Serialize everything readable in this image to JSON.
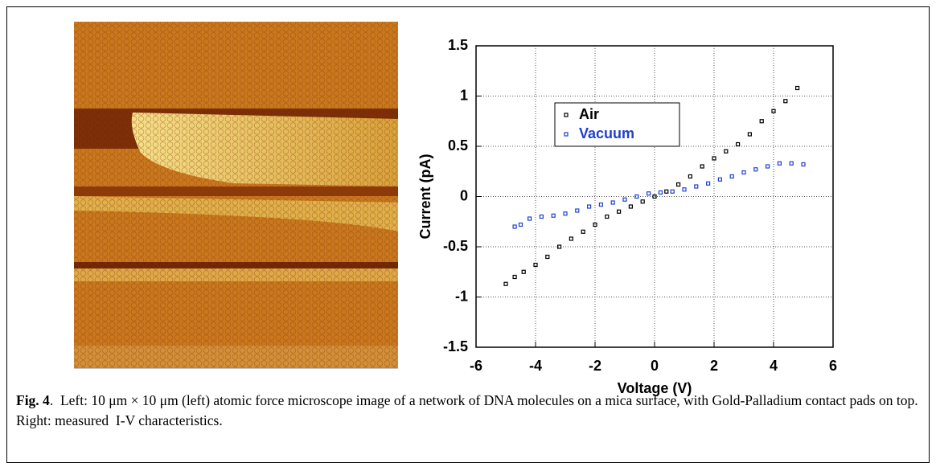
{
  "chart_data": {
    "type": "scatter",
    "x_label": "Voltage (V)",
    "y_label": "Current (pA)",
    "xlim": [
      -6,
      6
    ],
    "xticks": [
      -6,
      -4,
      -2,
      0,
      2,
      4,
      6
    ],
    "ylim": [
      -1.5,
      1.5
    ],
    "yticks": [
      -1.5,
      -1,
      -0.5,
      0,
      0.5,
      1,
      1.5
    ],
    "grid": true,
    "legend": "upper-left",
    "series": [
      {
        "name": "Air",
        "color": "#000000",
        "x": [
          -5,
          -4.7,
          -4.4,
          -4,
          -3.6,
          -3.2,
          -2.8,
          -2.4,
          -2,
          -1.6,
          -1.2,
          -0.8,
          -0.4,
          0,
          0.4,
          0.8,
          1.2,
          1.6,
          2,
          2.4,
          2.8,
          3.2,
          3.6,
          4,
          4.4,
          4.8
        ],
        "values": [
          -0.87,
          -0.8,
          -0.75,
          -0.68,
          -0.6,
          -0.5,
          -0.42,
          -0.35,
          -0.28,
          -0.2,
          -0.15,
          -0.1,
          -0.05,
          0,
          0.05,
          0.12,
          0.2,
          0.3,
          0.38,
          0.45,
          0.52,
          0.62,
          0.75,
          0.85,
          0.95,
          1.08
        ]
      },
      {
        "name": "Vacuum",
        "color": "#1f3fd0",
        "x": [
          -4.7,
          -4.5,
          -4.2,
          -3.8,
          -3.4,
          -3,
          -2.6,
          -2.2,
          -1.8,
          -1.4,
          -1,
          -0.6,
          -0.2,
          0.2,
          0.6,
          1,
          1.4,
          1.8,
          2.2,
          2.6,
          3,
          3.4,
          3.8,
          4.2,
          4.6,
          5
        ],
        "values": [
          -0.3,
          -0.28,
          -0.22,
          -0.2,
          -0.19,
          -0.17,
          -0.14,
          -0.1,
          -0.08,
          -0.06,
          -0.03,
          0,
          0.03,
          0.04,
          0.05,
          0.07,
          0.1,
          0.13,
          0.17,
          0.2,
          0.24,
          0.27,
          0.3,
          0.33,
          0.33,
          0.32
        ]
      }
    ]
  },
  "caption": {
    "label": "Fig. 4",
    "text": ".  Left: 10 μm × 10 μm (left) atomic force microscope image of a network of DNA molecules on a mica surface, with Gold-Palladium contact pads on top.    Right: measured  I-V characteristics."
  }
}
